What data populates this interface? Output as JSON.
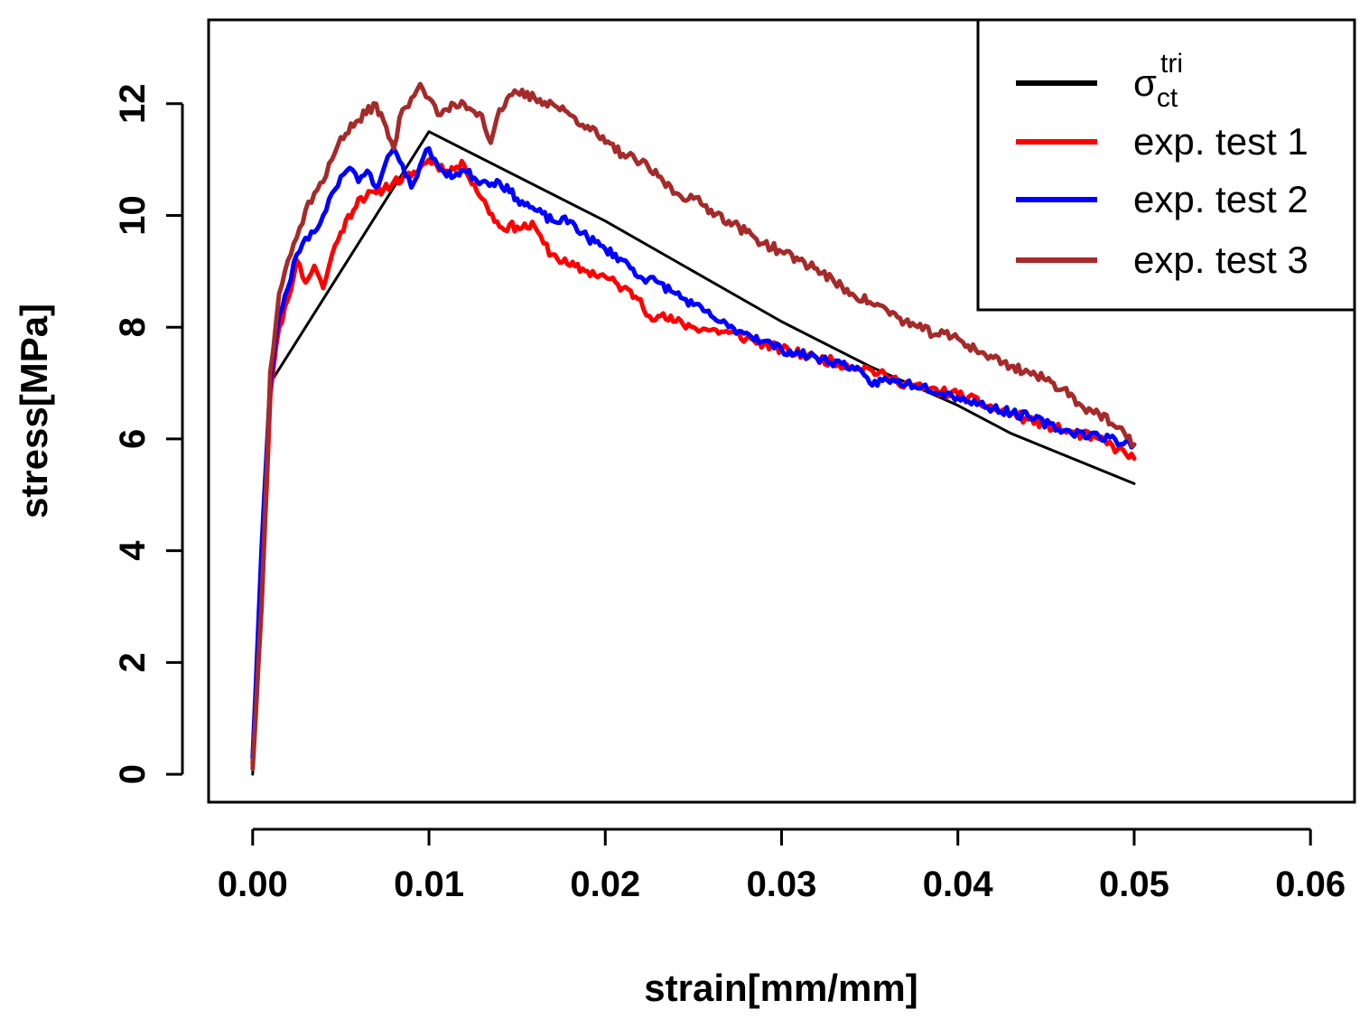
{
  "chart_data": {
    "type": "line",
    "title": "",
    "xlabel": "strain[mm/mm]",
    "ylabel": "stress[MPa]",
    "xlim": [
      -0.0025,
      0.0625
    ],
    "ylim": [
      -0.5,
      13.5
    ],
    "xticks": [
      0.0,
      0.01,
      0.02,
      0.03,
      0.04,
      0.05,
      0.06
    ],
    "xtick_labels": [
      "0.00",
      "0.01",
      "0.02",
      "0.03",
      "0.04",
      "0.05",
      "0.06"
    ],
    "yticks": [
      0,
      2,
      4,
      6,
      8,
      10,
      12
    ],
    "ytick_labels": [
      "0",
      "2",
      "4",
      "6",
      "8",
      "10",
      "12"
    ],
    "grid": false,
    "legend_position": "top-right",
    "series": [
      {
        "name": "σ_ct^tri",
        "legend_main": "σ",
        "legend_sub": "ct",
        "legend_sup": "tri",
        "color": "#000000",
        "width": 3,
        "noise": 0,
        "points": [
          [
            0.0,
            0.0
          ],
          [
            0.001,
            7.0
          ],
          [
            0.01,
            11.5
          ],
          [
            0.02,
            9.9
          ],
          [
            0.03,
            8.1
          ],
          [
            0.035,
            7.3
          ],
          [
            0.04,
            6.6
          ],
          [
            0.043,
            6.1
          ],
          [
            0.05,
            5.2
          ]
        ]
      },
      {
        "name": "exp. test 1",
        "legend_main": "exp. test 1",
        "color": "#ff0000",
        "width": 5,
        "noise": 0.09,
        "seed": 11,
        "points": [
          [
            0.0,
            0.2
          ],
          [
            0.0005,
            3.0
          ],
          [
            0.001,
            6.8
          ],
          [
            0.0015,
            8.0
          ],
          [
            0.002,
            8.5
          ],
          [
            0.0025,
            9.2
          ],
          [
            0.003,
            8.8
          ],
          [
            0.0035,
            9.1
          ],
          [
            0.004,
            8.7
          ],
          [
            0.0045,
            9.3
          ],
          [
            0.005,
            9.7
          ],
          [
            0.006,
            10.3
          ],
          [
            0.007,
            10.4
          ],
          [
            0.008,
            10.6
          ],
          [
            0.009,
            10.7
          ],
          [
            0.01,
            11.0
          ],
          [
            0.011,
            10.8
          ],
          [
            0.012,
            10.9
          ],
          [
            0.013,
            10.3
          ],
          [
            0.014,
            9.8
          ],
          [
            0.015,
            9.8
          ],
          [
            0.016,
            9.8
          ],
          [
            0.0165,
            9.5
          ],
          [
            0.017,
            9.3
          ],
          [
            0.018,
            9.1
          ],
          [
            0.019,
            9.0
          ],
          [
            0.02,
            8.9
          ],
          [
            0.021,
            8.7
          ],
          [
            0.022,
            8.5
          ],
          [
            0.0225,
            8.2
          ],
          [
            0.023,
            8.2
          ],
          [
            0.024,
            8.1
          ],
          [
            0.025,
            8.0
          ],
          [
            0.026,
            7.95
          ],
          [
            0.027,
            7.9
          ],
          [
            0.028,
            7.8
          ],
          [
            0.029,
            7.7
          ],
          [
            0.03,
            7.6
          ],
          [
            0.032,
            7.45
          ],
          [
            0.034,
            7.3
          ],
          [
            0.035,
            7.25
          ],
          [
            0.036,
            7.1
          ],
          [
            0.038,
            6.9
          ],
          [
            0.04,
            6.8
          ],
          [
            0.042,
            6.55
          ],
          [
            0.044,
            6.35
          ],
          [
            0.046,
            6.15
          ],
          [
            0.048,
            6.0
          ],
          [
            0.05,
            5.65
          ]
        ]
      },
      {
        "name": "exp. test 2",
        "legend_main": "exp. test 2",
        "color": "#0000ff",
        "width": 5,
        "noise": 0.08,
        "seed": 23,
        "points": [
          [
            0.0,
            0.3
          ],
          [
            0.0005,
            4.0
          ],
          [
            0.001,
            7.0
          ],
          [
            0.0015,
            8.2
          ],
          [
            0.002,
            8.7
          ],
          [
            0.0025,
            9.3
          ],
          [
            0.003,
            9.6
          ],
          [
            0.0035,
            9.7
          ],
          [
            0.004,
            10.0
          ],
          [
            0.0045,
            10.4
          ],
          [
            0.005,
            10.7
          ],
          [
            0.0055,
            10.85
          ],
          [
            0.006,
            10.6
          ],
          [
            0.0065,
            10.8
          ],
          [
            0.007,
            10.5
          ],
          [
            0.0075,
            10.9
          ],
          [
            0.008,
            11.2
          ],
          [
            0.0085,
            10.9
          ],
          [
            0.009,
            10.5
          ],
          [
            0.0095,
            10.9
          ],
          [
            0.01,
            11.2
          ],
          [
            0.0105,
            10.9
          ],
          [
            0.011,
            10.7
          ],
          [
            0.012,
            10.8
          ],
          [
            0.013,
            10.6
          ],
          [
            0.014,
            10.6
          ],
          [
            0.015,
            10.3
          ],
          [
            0.016,
            10.1
          ],
          [
            0.017,
            9.9
          ],
          [
            0.018,
            9.9
          ],
          [
            0.019,
            9.6
          ],
          [
            0.02,
            9.4
          ],
          [
            0.021,
            9.2
          ],
          [
            0.022,
            8.9
          ],
          [
            0.023,
            8.8
          ],
          [
            0.024,
            8.6
          ],
          [
            0.025,
            8.4
          ],
          [
            0.026,
            8.2
          ],
          [
            0.027,
            8.0
          ],
          [
            0.028,
            7.9
          ],
          [
            0.029,
            7.75
          ],
          [
            0.03,
            7.6
          ],
          [
            0.032,
            7.45
          ],
          [
            0.034,
            7.3
          ],
          [
            0.035,
            7.0
          ],
          [
            0.036,
            7.05
          ],
          [
            0.038,
            6.95
          ],
          [
            0.04,
            6.75
          ],
          [
            0.042,
            6.55
          ],
          [
            0.044,
            6.4
          ],
          [
            0.046,
            6.15
          ],
          [
            0.048,
            6.05
          ],
          [
            0.05,
            5.9
          ]
        ]
      },
      {
        "name": "exp. test 3",
        "legend_main": "exp. test 3",
        "color": "#a52a2a",
        "width": 5,
        "noise": 0.09,
        "seed": 37,
        "points": [
          [
            0.0,
            0.1
          ],
          [
            0.0005,
            3.0
          ],
          [
            0.001,
            7.2
          ],
          [
            0.0015,
            8.6
          ],
          [
            0.002,
            9.2
          ],
          [
            0.0025,
            9.6
          ],
          [
            0.003,
            10.1
          ],
          [
            0.0035,
            10.4
          ],
          [
            0.004,
            10.6
          ],
          [
            0.0045,
            11.0
          ],
          [
            0.005,
            11.4
          ],
          [
            0.006,
            11.7
          ],
          [
            0.007,
            12.0
          ],
          [
            0.008,
            11.2
          ],
          [
            0.0085,
            11.9
          ],
          [
            0.009,
            12.1
          ],
          [
            0.0095,
            12.35
          ],
          [
            0.01,
            12.1
          ],
          [
            0.0105,
            11.8
          ],
          [
            0.011,
            11.9
          ],
          [
            0.012,
            12.0
          ],
          [
            0.013,
            11.8
          ],
          [
            0.0135,
            11.3
          ],
          [
            0.014,
            11.9
          ],
          [
            0.015,
            12.2
          ],
          [
            0.016,
            12.1
          ],
          [
            0.017,
            12.0
          ],
          [
            0.018,
            11.8
          ],
          [
            0.019,
            11.6
          ],
          [
            0.02,
            11.3
          ],
          [
            0.021,
            11.1
          ],
          [
            0.022,
            10.95
          ],
          [
            0.023,
            10.7
          ],
          [
            0.024,
            10.4
          ],
          [
            0.025,
            10.3
          ],
          [
            0.026,
            10.1
          ],
          [
            0.027,
            9.9
          ],
          [
            0.028,
            9.7
          ],
          [
            0.029,
            9.5
          ],
          [
            0.03,
            9.35
          ],
          [
            0.031,
            9.2
          ],
          [
            0.032,
            9.05
          ],
          [
            0.033,
            8.8
          ],
          [
            0.034,
            8.6
          ],
          [
            0.035,
            8.45
          ],
          [
            0.036,
            8.3
          ],
          [
            0.037,
            8.1
          ],
          [
            0.038,
            7.95
          ],
          [
            0.04,
            7.8
          ],
          [
            0.041,
            7.6
          ],
          [
            0.042,
            7.45
          ],
          [
            0.043,
            7.3
          ],
          [
            0.044,
            7.2
          ],
          [
            0.045,
            7.05
          ],
          [
            0.046,
            6.9
          ],
          [
            0.047,
            6.6
          ],
          [
            0.048,
            6.45
          ],
          [
            0.049,
            6.2
          ],
          [
            0.05,
            5.9
          ]
        ]
      }
    ]
  }
}
